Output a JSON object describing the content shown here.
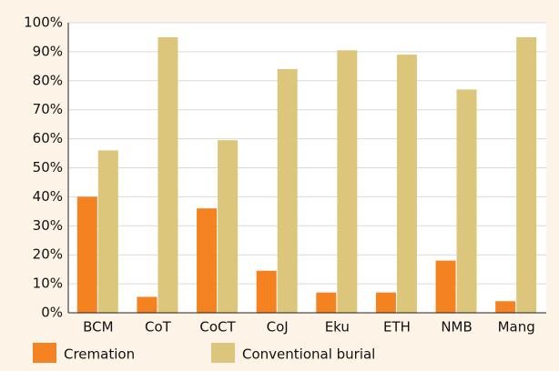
{
  "chart_data": {
    "type": "bar",
    "categories": [
      "BCM",
      "CoT",
      "CoCT",
      "CoJ",
      "Eku",
      "ETH",
      "NMB",
      "Mang"
    ],
    "series": [
      {
        "name": "Cremation",
        "color": "#f58220",
        "values": [
          40,
          5.5,
          36,
          14.5,
          7,
          7,
          18,
          4
        ]
      },
      {
        "name": "Conventional burial",
        "color": "#dcc67c",
        "values": [
          56,
          95,
          59.5,
          84,
          90.5,
          89,
          77,
          95
        ]
      }
    ],
    "ylim": [
      0,
      100
    ],
    "yticks": [
      {
        "value": 0,
        "label": "0%"
      },
      {
        "value": 10,
        "label": "10%"
      },
      {
        "value": 20,
        "label": "20%"
      },
      {
        "value": 30,
        "label": "30%"
      },
      {
        "value": 40,
        "label": "40%"
      },
      {
        "value": 50,
        "label": "50%"
      },
      {
        "value": 60,
        "label": "60%"
      },
      {
        "value": 70,
        "label": "70%"
      },
      {
        "value": 80,
        "label": "80%"
      },
      {
        "value": 90,
        "label": "90%"
      },
      {
        "value": 100,
        "label": "100%"
      }
    ],
    "grid": true,
    "legend": "bottom"
  }
}
